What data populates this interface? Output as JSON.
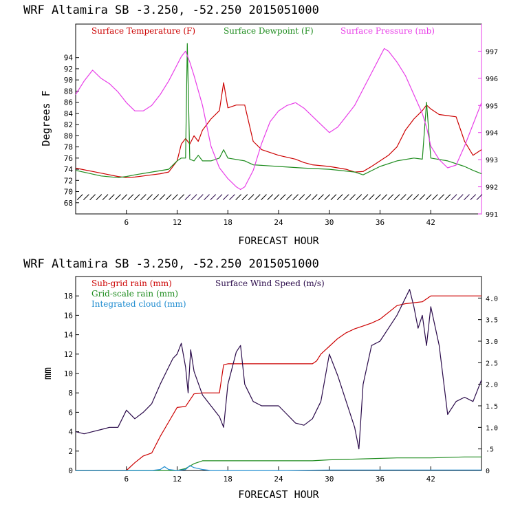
{
  "chart_data": [
    {
      "type": "line",
      "title": "WRF   Altamira  SB  -3.250, -52.250  2015051000",
      "xlabel": "FORECAST HOUR",
      "ylabel": "Degrees F",
      "xticks": [
        "6",
        "12",
        "18",
        "24",
        "30",
        "36",
        "42"
      ],
      "xlim": [
        0,
        48
      ],
      "ylim": [
        66,
        100
      ],
      "yticks": [
        "68",
        "70",
        "72",
        "74",
        "76",
        "78",
        "80",
        "82",
        "84",
        "86",
        "88",
        "90",
        "92",
        "94"
      ],
      "y2label": "",
      "y2lim": [
        991,
        998
      ],
      "y2ticks": [
        "991",
        "992",
        "993",
        "994",
        "995",
        "996",
        "997"
      ],
      "series": [
        {
          "name": "Surface Temperature (F)",
          "color": "#cc0000",
          "axis": "left",
          "x": [
            0,
            3,
            5,
            6,
            7,
            8,
            9,
            10,
            11,
            12,
            12.5,
            13,
            13.5,
            14,
            14.5,
            15,
            16,
            17,
            17.5,
            18,
            19,
            20,
            21,
            22,
            24,
            26,
            27,
            28,
            30,
            32,
            33,
            34,
            35,
            36,
            37,
            38,
            39,
            40,
            41,
            41.5,
            42,
            43,
            44,
            45,
            46,
            47,
            48
          ],
          "values": [
            74.2,
            73.3,
            72.7,
            72.5,
            72.6,
            72.8,
            73.0,
            73.2,
            73.5,
            75.5,
            78.5,
            79.5,
            78.5,
            80,
            79,
            81,
            83,
            84.5,
            89.5,
            85,
            85.5,
            85.5,
            79,
            77.5,
            76.5,
            75.8,
            75.2,
            74.8,
            74.5,
            74,
            73.5,
            73.6,
            74.5,
            75.5,
            76.5,
            78,
            81,
            83,
            84.5,
            85.5,
            84.8,
            83.8,
            83.6,
            83.4,
            79,
            76.5,
            77.5
          ]
        },
        {
          "name": "Surface Dewpoint (F)",
          "color": "#1e8c1e",
          "axis": "left",
          "x": [
            0,
            3,
            5,
            6,
            7,
            9,
            11,
            12,
            12.5,
            13,
            13.2,
            13.5,
            14,
            14.5,
            15,
            16,
            17,
            17.5,
            18,
            20,
            21,
            24,
            27,
            30,
            33,
            34,
            36,
            38,
            40,
            41,
            41.5,
            42,
            44,
            46,
            47,
            48
          ],
          "values": [
            73.8,
            72.8,
            72.5,
            72.7,
            73.0,
            73.5,
            74.0,
            75.5,
            76,
            76,
            96.5,
            75.8,
            75.5,
            76.5,
            75.5,
            75.5,
            76,
            77.5,
            76,
            75.5,
            74.8,
            74.5,
            74.2,
            74.0,
            73.5,
            73.0,
            74.5,
            75.5,
            76,
            75.8,
            86,
            76,
            75.5,
            74.5,
            73.8,
            73.2
          ]
        },
        {
          "name": "Surface Pressure (mb)",
          "color": "#e83ee8",
          "axis": "right",
          "x": [
            0,
            1,
            2,
            3,
            4,
            5,
            6,
            7,
            8,
            9,
            10,
            11,
            12,
            12.5,
            13,
            13.5,
            14,
            15,
            16,
            17,
            18,
            19,
            19.5,
            20,
            21,
            22,
            23,
            24,
            25,
            26,
            27,
            28,
            29,
            30,
            31,
            32,
            33,
            34,
            35,
            36,
            36.5,
            37,
            38,
            39,
            40,
            41,
            41.5,
            42,
            43,
            44,
            45,
            46,
            47,
            48
          ],
          "values": [
            995.4,
            995.9,
            996.3,
            996.0,
            995.8,
            995.5,
            995.1,
            994.8,
            994.8,
            995.0,
            995.4,
            995.9,
            996.5,
            996.8,
            997.0,
            996.6,
            996.1,
            995.0,
            993.5,
            992.7,
            992.3,
            992.0,
            991.9,
            992.0,
            992.6,
            993.6,
            994.4,
            994.8,
            995.0,
            995.1,
            994.9,
            994.6,
            994.3,
            994.0,
            994.2,
            994.6,
            995.0,
            995.6,
            996.2,
            996.8,
            997.1,
            997.0,
            996.6,
            996.1,
            995.4,
            994.7,
            994.2,
            993.5,
            993.0,
            992.7,
            992.8,
            993.5,
            994.3,
            995.1
          ]
        }
      ],
      "wind_barbs": "present along bottom near 69 F"
    },
    {
      "type": "line",
      "title": "WRF   Altamira  SB  -3.250, -52.250  2015051000",
      "xlabel": "FORECAST HOUR",
      "ylabel": "mm",
      "xticks": [
        "6",
        "12",
        "18",
        "24",
        "30",
        "36",
        "42"
      ],
      "xlim": [
        0,
        48
      ],
      "ylim": [
        0,
        20
      ],
      "yticks": [
        "0",
        "2",
        "4",
        "6",
        "8",
        "10",
        "12",
        "14",
        "16",
        "18"
      ],
      "y2lim": [
        0,
        4.5
      ],
      "y2ticks": [
        "0",
        ".5",
        "1.0",
        "1.5",
        "2.0",
        "2.5",
        "3.0",
        "3.5",
        "4.0"
      ],
      "series": [
        {
          "name": "Sub-grid rain (mm)",
          "color": "#cc0000",
          "axis": "left",
          "x": [
            0,
            5,
            6,
            7,
            8,
            9,
            10,
            11,
            12,
            13,
            14,
            15,
            16,
            17,
            17.5,
            18,
            20,
            22,
            24,
            26,
            28,
            28.5,
            29,
            30,
            31,
            32,
            33,
            34,
            35,
            36,
            37,
            38,
            39,
            40,
            41,
            42,
            44,
            46,
            48
          ],
          "values": [
            0,
            0,
            0,
            0.8,
            1.5,
            1.8,
            3.5,
            5.0,
            6.5,
            6.6,
            7.9,
            8.0,
            8.0,
            8.0,
            10.9,
            11.0,
            11.0,
            11.0,
            11.0,
            11.0,
            11.0,
            11.3,
            12.0,
            12.8,
            13.6,
            14.2,
            14.6,
            14.9,
            15.2,
            15.6,
            16.3,
            17.0,
            17.2,
            17.3,
            17.4,
            18.0,
            18.0,
            18.0,
            18.0
          ]
        },
        {
          "name": "Grid-scale rain (mm)",
          "color": "#1e8c1e",
          "axis": "left",
          "x": [
            0,
            12,
            13,
            14,
            15,
            20,
            24,
            28,
            30,
            34,
            38,
            42,
            46,
            48
          ],
          "values": [
            0,
            0,
            0.2,
            0.7,
            1.0,
            1.0,
            1.0,
            1.0,
            1.1,
            1.2,
            1.3,
            1.3,
            1.4,
            1.4
          ]
        },
        {
          "name": "Integrated cloud (mm)",
          "color": "#1e8cd0",
          "axis": "left",
          "x": [
            0,
            9,
            10,
            10.5,
            11,
            12,
            13,
            13.5,
            14,
            15,
            16,
            24,
            30,
            36,
            42,
            48
          ],
          "values": [
            0,
            0,
            0.1,
            0.4,
            0.1,
            0,
            0.1,
            0.5,
            0.3,
            0.1,
            0,
            0,
            0.05,
            0.05,
            0.05,
            0.05
          ]
        },
        {
          "name": "Surface Wind Speed (m/s)",
          "color": "#2a0a4a",
          "axis": "right",
          "x": [
            0,
            1,
            2,
            3,
            4,
            5,
            6,
            7,
            8,
            9,
            10,
            11,
            11.5,
            12,
            12.5,
            13,
            13.3,
            13.6,
            14,
            15,
            16,
            17,
            17.5,
            18,
            19,
            19.5,
            20,
            21,
            22,
            23,
            24,
            25,
            26,
            27,
            28,
            29,
            30,
            31,
            32,
            33,
            33.5,
            34,
            35,
            36,
            37,
            38,
            39,
            39.5,
            40,
            40.5,
            41,
            41.5,
            42,
            43,
            44,
            45,
            46,
            47,
            48
          ],
          "values": [
            0.9,
            0.85,
            0.9,
            0.95,
            1.0,
            1.0,
            1.4,
            1.2,
            1.35,
            1.55,
            2.0,
            2.4,
            2.6,
            2.7,
            2.95,
            2.4,
            1.8,
            2.8,
            2.3,
            1.75,
            1.5,
            1.25,
            1.0,
            2.0,
            2.75,
            2.9,
            2.0,
            1.6,
            1.5,
            1.5,
            1.5,
            1.3,
            1.1,
            1.05,
            1.2,
            1.6,
            2.7,
            2.2,
            1.6,
            1.0,
            0.5,
            2.0,
            2.9,
            3.0,
            3.3,
            3.6,
            4.0,
            4.2,
            3.8,
            3.3,
            3.6,
            2.9,
            3.8,
            2.9,
            1.3,
            1.6,
            1.7,
            1.6,
            2.1
          ]
        }
      ]
    }
  ]
}
